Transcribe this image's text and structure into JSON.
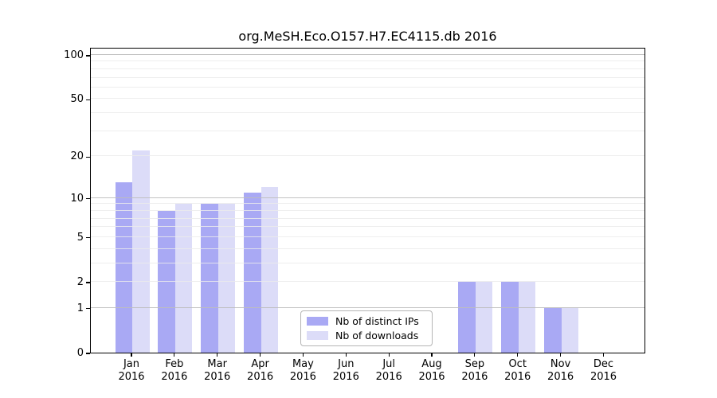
{
  "title": "org.MeSH.Eco.O157.H7.EC4115.db 2016",
  "colors": {
    "bar_distinct_ips": "#a9a9f4",
    "bar_downloads": "#dcdcf8",
    "grid_major": "#bdbdbd",
    "grid_minor": "#ebebeb",
    "axis": "#000000",
    "legend_border": "#b5b5b5",
    "background": "#ffffff"
  },
  "chart_data": {
    "type": "bar",
    "title": "org.MeSH.Eco.O157.H7.EC4115.db 2016",
    "categories": [
      "Jan",
      "Feb",
      "Mar",
      "Apr",
      "May",
      "Jun",
      "Jul",
      "Aug",
      "Sep",
      "Oct",
      "Nov",
      "Dec"
    ],
    "year_label": "2016",
    "series": [
      {
        "name": "Nb of distinct IPs",
        "color": "#a9a9f4",
        "values": [
          13,
          8,
          9,
          11,
          0,
          0,
          0,
          0,
          2,
          2,
          1,
          0
        ]
      },
      {
        "name": "Nb of downloads",
        "color": "#dcdcf8",
        "values": [
          22,
          9,
          9,
          12,
          0,
          0,
          0,
          0,
          2,
          2,
          1,
          0
        ]
      }
    ],
    "xlabel": "",
    "ylabel": "",
    "yscale": "log1p",
    "ylim": [
      0,
      113
    ],
    "yticks": [
      0,
      1,
      2,
      5,
      10,
      20,
      50,
      100
    ],
    "grid": {
      "on": true,
      "major": [
        1,
        10,
        100
      ],
      "minor": [
        2,
        3,
        4,
        5,
        6,
        7,
        8,
        9,
        20,
        30,
        40,
        50,
        60,
        70,
        80,
        90
      ],
      "major_color": "#bdbdbd",
      "minor_color": "#ebebeb"
    },
    "legend_position": "bottom-center-inside"
  }
}
